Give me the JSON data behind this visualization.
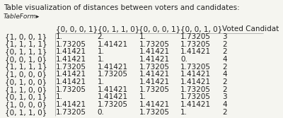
{
  "title": "Table visualization of distances between voters and candidates:",
  "subtitle": "TableForm▸",
  "col_headers": [
    "",
    "{0, 0, 0, 1}",
    "{0, 1, 1, 0}",
    "{0, 0, 0, 1}",
    "{0, 0, 1, 0}",
    "Voted Candidat"
  ],
  "row_headers": [
    "{1, 0, 0, 1}",
    "{1, 1, 1, 1}",
    "{0, 1, 1, 1}",
    "{0, 0, 1, 0}",
    "{1, 1, 1, 1}",
    "{1, 0, 0, 0}",
    "{0, 1, 0, 0}",
    "{1, 1, 0, 0}",
    "{0, 1, 0, 1}",
    "{1, 0, 0, 0}",
    "{0, 1, 1, 0}"
  ],
  "table_data": [
    [
      "1.",
      "2.",
      "1.",
      "1.73205",
      "3"
    ],
    [
      "1.73205",
      "1.41421",
      "1.73205",
      "1.73205",
      "2"
    ],
    [
      "1.41421",
      "1.",
      "1.41421",
      "1.41421",
      "2"
    ],
    [
      "1.41421",
      "1.",
      "1.41421",
      "0.",
      "4"
    ],
    [
      "1.73205",
      "1.41421",
      "1.73205",
      "1.73205",
      "2"
    ],
    [
      "1.41421",
      "1.73205",
      "1.41421",
      "1.41421",
      "4"
    ],
    [
      "1.41421",
      "1.",
      "1.41421",
      "1.41421",
      "2"
    ],
    [
      "1.73205",
      "1.41421",
      "1.73205",
      "1.73205",
      "2"
    ],
    [
      "1.",
      "1.41421",
      "1.",
      "1.73205",
      "3"
    ],
    [
      "1.41421",
      "1.73205",
      "1.41421",
      "1.41421",
      "4"
    ],
    [
      "1.73205",
      "0.",
      "1.73205",
      "1.",
      "2"
    ]
  ],
  "bg_color": "#f5f5f0",
  "header_color": "#e8e8e0",
  "line_color": "#999999",
  "text_color": "#222222",
  "font_size": 7.5
}
